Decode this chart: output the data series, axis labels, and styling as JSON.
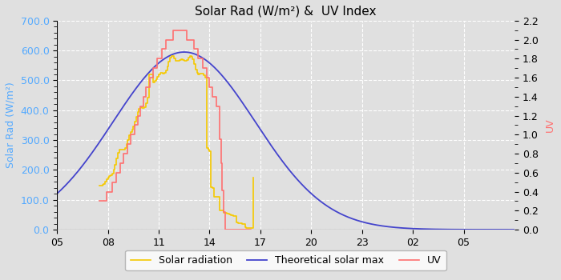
{
  "title": "Solar Rad (W/m²) &  UV Index",
  "ylabel_left": "Solar Rad (W/m²)",
  "ylabel_right": "UV",
  "ylim_left": [
    0,
    700
  ],
  "ylim_right": [
    0,
    2.2
  ],
  "yticks_left": [
    0,
    100,
    200,
    300,
    400,
    500,
    600,
    700
  ],
  "ytick_labels_left": [
    "0.0",
    "100.0",
    "200.0",
    "300.0",
    "400.0",
    "500.0",
    "600.0",
    "700.0"
  ],
  "yticks_right": [
    0.0,
    0.2,
    0.4,
    0.6,
    0.8,
    1.0,
    1.2,
    1.4,
    1.6,
    1.8,
    2.0,
    2.2
  ],
  "xticks": [
    5,
    8,
    11,
    14,
    17,
    20,
    23,
    26,
    29
  ],
  "xtick_labels": [
    "05",
    "08",
    "11",
    "14",
    "17",
    "20",
    "23",
    "02",
    "05"
  ],
  "xlim": [
    5,
    32
  ],
  "background_color": "#e0e0e0",
  "grid_color": "#ffffff",
  "solar_color": "#f5c800",
  "theoretical_color": "#4444cc",
  "uv_color": "#ff7070",
  "legend_labels": [
    "Solar radiation",
    "Theoretical solar max",
    "UV"
  ],
  "title_fontsize": 11,
  "axis_label_fontsize": 9,
  "tick_fontsize": 9,
  "left_label_color": "#55aaff",
  "right_label_color": "#ff7070"
}
